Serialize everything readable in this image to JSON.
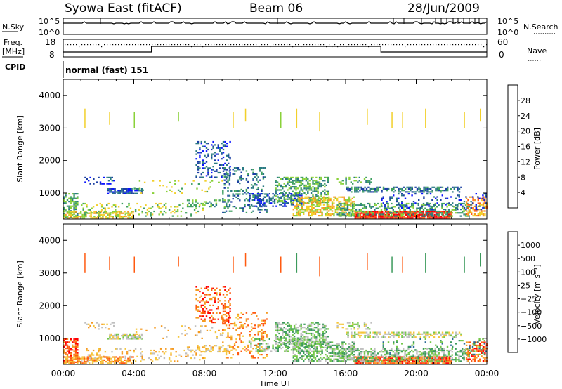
{
  "header": {
    "title": "Syowa East (fitACF)",
    "beam": "Beam 06",
    "date": "28/Jun/2009"
  },
  "top_panels": {
    "nsky_label": "N.Sky",
    "nsearch_label": "N.Search",
    "nsky_ticks": [
      "10^5",
      "10^0"
    ],
    "nsearch_ticks": [
      "10^5",
      "10^0"
    ],
    "freq_label_1": "Freq.",
    "freq_label_2": "[MHz]",
    "freq_ticks": [
      "18",
      "8"
    ],
    "nave_ticks": [
      "60",
      "0"
    ],
    "nave_label": "Nave",
    "cpid_label": "CPID",
    "cpid_text": "normal (fast) 151"
  },
  "colors": {
    "power": [
      "#0a14ff",
      "#1b3fa3",
      "#2a7a82",
      "#3fa060",
      "#8ad13a",
      "#f2d02a",
      "#f59a20",
      "#ff5a10",
      "#ff0000"
    ],
    "velocity": [
      "#2840b0",
      "#2a6a98",
      "#3c9a5c",
      "#74c84a",
      "#bfbfbf",
      "#f5c63a",
      "#f59a20",
      "#ff5a10",
      "#ff0000"
    ]
  },
  "chart_data": [
    {
      "type": "heatmap",
      "name": "power",
      "ylabel": "Slant Range [km]",
      "xlabel": "",
      "y_ticks": [
        "4000",
        "3000",
        "2000",
        "1000"
      ],
      "y_tick_values": [
        4000,
        3000,
        2000,
        1000
      ],
      "ylim": [
        200,
        4500
      ],
      "colorbar": {
        "label": "Power [dB]",
        "ticks": [
          "28",
          "24",
          "20",
          "16",
          "12",
          "8",
          "4"
        ],
        "range": [
          0,
          30
        ]
      }
    },
    {
      "type": "heatmap",
      "name": "velocity",
      "ylabel": "Slant Range [km]",
      "xlabel": "Time UT",
      "x_ticks": [
        "00:00",
        "04:00",
        "08:00",
        "12:00",
        "16:00",
        "20:00",
        "00:00"
      ],
      "x_tick_hours": [
        0,
        4,
        8,
        12,
        16,
        20,
        24
      ],
      "y_ticks": [
        "4000",
        "3000",
        "2000",
        "1000"
      ],
      "y_tick_values": [
        4000,
        3000,
        2000,
        1000
      ],
      "ylim": [
        200,
        4500
      ],
      "colorbar": {
        "label": "Velocity [m s⁻¹]",
        "ticks": [
          "1000",
          "500",
          "100",
          "25",
          "−25",
          "−100",
          "−500",
          "−1000"
        ]
      }
    }
  ]
}
